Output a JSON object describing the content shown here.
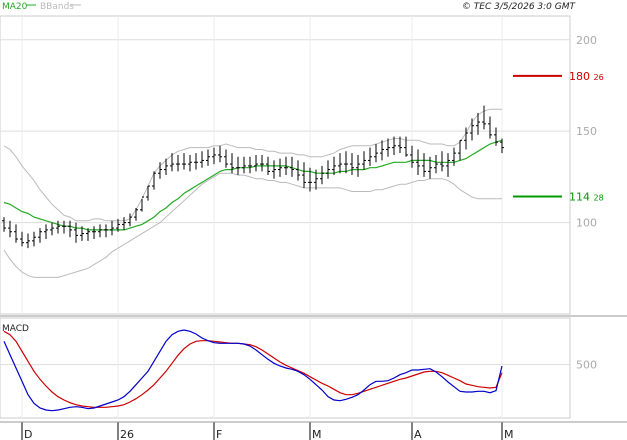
{
  "header": {
    "indicators": [
      {
        "label": "MA20",
        "color": "#22aa22"
      },
      {
        "label": "BBands",
        "color": "#bbbbbb"
      }
    ],
    "copyright": "© TEC 3/5/2026 3:0 GMT"
  },
  "macd_panel": {
    "label": "MACD",
    "axis_label": "500"
  },
  "chart_data": [
    {
      "type": "ohlc",
      "panel": "price",
      "y_axis": {
        "ticks": [
          "200",
          "150",
          "100"
        ],
        "tick_values": [
          200,
          150,
          100
        ],
        "ylim": [
          50,
          213
        ]
      },
      "x_axis": {
        "labels": [
          "D",
          "26",
          "F",
          "M",
          "A",
          "M"
        ],
        "label_index": [
          3,
          19,
          35,
          51,
          68,
          83
        ]
      },
      "grid": true,
      "series": [
        {
          "name": "OHLC",
          "color": "#000000",
          "high": [
            103,
            101,
            99,
            95,
            94,
            95,
            97,
            99,
            100,
            101,
            101,
            101,
            100,
            98,
            97,
            98,
            99,
            99,
            101,
            102,
            103,
            105,
            108,
            113,
            120,
            128,
            133,
            135,
            138,
            137,
            138,
            137,
            138,
            139,
            140,
            141,
            142,
            140,
            138,
            136,
            136,
            136,
            137,
            137,
            136,
            134,
            135,
            136,
            136,
            134,
            133,
            130,
            129,
            131,
            134,
            136,
            138,
            139,
            138,
            137,
            139,
            141,
            143,
            145,
            146,
            147,
            147,
            147,
            142,
            140,
            138,
            136,
            137,
            139,
            138,
            141,
            145,
            152,
            157,
            160,
            164,
            158,
            152,
            146
          ],
          "low": [
            95,
            92,
            89,
            87,
            86,
            87,
            89,
            91,
            93,
            94,
            94,
            92,
            89,
            90,
            90,
            91,
            92,
            92,
            93,
            95,
            96,
            98,
            101,
            106,
            112,
            118,
            124,
            126,
            128,
            128,
            129,
            128,
            129,
            130,
            131,
            132,
            133,
            130,
            127,
            126,
            127,
            127,
            128,
            128,
            126,
            124,
            125,
            126,
            125,
            123,
            119,
            117,
            118,
            121,
            124,
            126,
            127,
            127,
            126,
            125,
            129,
            131,
            133,
            134,
            136,
            137,
            138,
            136,
            130,
            126,
            125,
            124,
            127,
            128,
            125,
            131,
            134,
            140,
            145,
            148,
            151,
            146,
            142,
            138
          ],
          "open": [
            101,
            97,
            95,
            91,
            89,
            90,
            92,
            95,
            96,
            97,
            98,
            98,
            96,
            93,
            94,
            95,
            95,
            96,
            96,
            97,
            99,
            100,
            103,
            107,
            114,
            120,
            127,
            129,
            131,
            132,
            132,
            132,
            133,
            133,
            134,
            136,
            137,
            136,
            132,
            130,
            130,
            131,
            131,
            132,
            132,
            128,
            129,
            130,
            130,
            129,
            126,
            122,
            122,
            124,
            127,
            129,
            131,
            132,
            132,
            130,
            132,
            134,
            136,
            138,
            140,
            141,
            142,
            141,
            137,
            133,
            131,
            128,
            130,
            132,
            131,
            134,
            138,
            145,
            149,
            153,
            155,
            154,
            148,
            144
          ],
          "close": [
            97,
            95,
            91,
            89,
            90,
            92,
            95,
            96,
            97,
            98,
            98,
            96,
            93,
            94,
            95,
            95,
            96,
            96,
            97,
            99,
            100,
            103,
            107,
            114,
            120,
            127,
            129,
            131,
            132,
            132,
            132,
            133,
            133,
            134,
            136,
            137,
            136,
            132,
            130,
            130,
            131,
            131,
            132,
            132,
            128,
            129,
            130,
            130,
            129,
            126,
            122,
            122,
            124,
            127,
            129,
            131,
            132,
            132,
            130,
            132,
            134,
            136,
            138,
            140,
            141,
            142,
            141,
            137,
            133,
            131,
            128,
            130,
            132,
            131,
            134,
            138,
            145,
            149,
            153,
            155,
            154,
            148,
            144,
            141
          ]
        },
        {
          "name": "MA20",
          "color": "#22aa22",
          "values": [
            111,
            110,
            108,
            106,
            105,
            103,
            102,
            101,
            100,
            99,
            98,
            98,
            97,
            97,
            96,
            96,
            96,
            96,
            96,
            96,
            96,
            97,
            98,
            99,
            101,
            103,
            106,
            108,
            111,
            113,
            116,
            118,
            120,
            122,
            124,
            126,
            128,
            129,
            129,
            130,
            130,
            130,
            131,
            131,
            131,
            131,
            131,
            131,
            130,
            129,
            128,
            128,
            127,
            127,
            127,
            127,
            128,
            128,
            129,
            129,
            129,
            130,
            130,
            131,
            132,
            133,
            133,
            133,
            134,
            134,
            134,
            134,
            133,
            133,
            133,
            133,
            134,
            135,
            137,
            139,
            141,
            143,
            144,
            145
          ]
        },
        {
          "name": "BBands upper",
          "color": "#bbbbbb",
          "values": [
            142,
            140,
            136,
            131,
            127,
            123,
            118,
            114,
            110,
            107,
            104,
            103,
            101,
            101,
            101,
            102,
            102,
            101,
            101,
            101,
            101,
            102,
            107,
            113,
            120,
            127,
            131,
            134,
            137,
            139,
            140,
            141,
            141,
            141,
            141,
            142,
            142,
            143,
            142,
            141,
            141,
            141,
            140,
            140,
            139,
            139,
            138,
            138,
            138,
            137,
            137,
            136,
            136,
            136,
            137,
            138,
            140,
            141,
            142,
            142,
            142,
            142,
            143,
            144,
            145,
            146,
            146,
            145,
            145,
            145,
            144,
            143,
            143,
            143,
            142,
            142,
            144,
            149,
            155,
            159,
            161,
            162,
            162,
            162
          ]
        },
        {
          "name": "BBands lower",
          "color": "#bbbbbb",
          "values": [
            85,
            80,
            76,
            73,
            71,
            70,
            70,
            70,
            70,
            70,
            71,
            72,
            73,
            74,
            75,
            77,
            79,
            81,
            84,
            86,
            88,
            90,
            92,
            94,
            96,
            98,
            100,
            103,
            106,
            109,
            112,
            115,
            118,
            121,
            123,
            125,
            127,
            127,
            127,
            126,
            126,
            125,
            124,
            124,
            123,
            123,
            122,
            122,
            121,
            120,
            119,
            119,
            119,
            119,
            119,
            119,
            119,
            118,
            117,
            117,
            117,
            117,
            118,
            118,
            119,
            120,
            121,
            121,
            122,
            123,
            123,
            124,
            124,
            124,
            123,
            121,
            118,
            116,
            114,
            113,
            113,
            113,
            113,
            113
          ]
        }
      ],
      "levels": [
        {
          "name": "resistance",
          "value": 180.26,
          "label": "180",
          "label_sup": "26",
          "color": "#cc0000"
        },
        {
          "name": "support",
          "value": 114.28,
          "label": "114",
          "label_sup": "28",
          "color": "#009900"
        }
      ]
    },
    {
      "type": "line",
      "panel": "macd",
      "y_axis": {
        "ticks": [
          "500"
        ],
        "tick_values": [
          5
        ],
        "ylim": [
          -3,
          12
        ]
      },
      "series": [
        {
          "name": "MACD",
          "color": "#0000cc",
          "values": [
            8.5,
            6.5,
            4.5,
            2.5,
            0.5,
            -0.8,
            -1.5,
            -1.8,
            -1.9,
            -1.8,
            -1.6,
            -1.4,
            -1.3,
            -1.4,
            -1.6,
            -1.5,
            -1.2,
            -0.9,
            -0.6,
            -0.3,
            0.2,
            1,
            2,
            3,
            4,
            5.5,
            7,
            8.5,
            9.5,
            10,
            10.2,
            10,
            9.6,
            9,
            8.6,
            8.3,
            8.2,
            8.2,
            8.2,
            8.2,
            8.1,
            7.8,
            7.2,
            6.5,
            5.8,
            5.2,
            4.8,
            4.5,
            4.3,
            4,
            3.5,
            2.8,
            2,
            1.2,
            0.2,
            -0.3,
            -0.4,
            -0.2,
            0.1,
            0.5,
            1.2,
            2,
            2.5,
            2.5,
            2.6,
            3,
            3.5,
            3.8,
            4.2,
            4.2,
            4.3,
            4.4,
            3.9,
            3.2,
            2.4,
            1.7,
            1,
            0.9,
            0.9,
            1,
            1,
            0.8,
            1.1,
            4.8
          ]
        },
        {
          "name": "Signal",
          "color": "#cc0000",
          "values": [
            10,
            9.5,
            8.5,
            7,
            5.5,
            4,
            2.8,
            1.8,
            0.9,
            0.2,
            -0.3,
            -0.7,
            -1,
            -1.2,
            -1.3,
            -1.4,
            -1.4,
            -1.4,
            -1.3,
            -1.2,
            -1,
            -0.6,
            -0.1,
            0.5,
            1.2,
            2,
            3,
            4,
            5.2,
            6.4,
            7.4,
            8.1,
            8.5,
            8.6,
            8.6,
            8.5,
            8.4,
            8.3,
            8.2,
            8.2,
            8.1,
            8,
            7.7,
            7.2,
            6.6,
            6,
            5.4,
            4.9,
            4.5,
            4.1,
            3.7,
            3.2,
            2.7,
            2.2,
            1.8,
            1.3,
            0.8,
            0.5,
            0.5,
            0.7,
            1,
            1.3,
            1.6,
            1.9,
            2.2,
            2.5,
            2.8,
            3,
            3.3,
            3.6,
            3.9,
            4,
            4,
            3.8,
            3.4,
            3,
            2.6,
            2.1,
            1.9,
            1.7,
            1.6,
            1.5,
            1.6,
            3.8
          ]
        }
      ]
    }
  ]
}
